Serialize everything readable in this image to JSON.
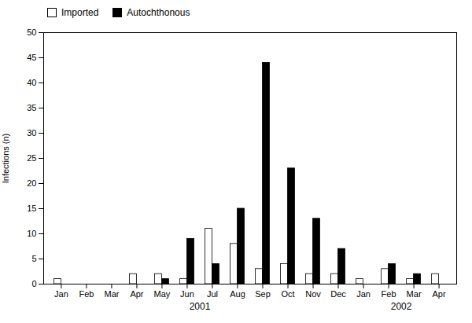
{
  "chart_data": {
    "type": "bar",
    "categories": [
      "Jan",
      "Feb",
      "Mar",
      "Apr",
      "May",
      "Jun",
      "Jul",
      "Aug",
      "Sep",
      "Oct",
      "Nov",
      "Dec",
      "Jan",
      "Feb",
      "Mar",
      "Apr"
    ],
    "series": [
      {
        "name": "Imported",
        "color": "#ffffff",
        "values": [
          1,
          0,
          0,
          2,
          2,
          1,
          11,
          8,
          3,
          4,
          2,
          2,
          1,
          3,
          1,
          2
        ]
      },
      {
        "name": "Autochthonous",
        "color": "#000000",
        "values": [
          0,
          0,
          0,
          0,
          1,
          9,
          4,
          15,
          44,
          23,
          13,
          7,
          0,
          4,
          2,
          0
        ]
      }
    ],
    "ylabel": "Infections (n)",
    "ylim": [
      0,
      50
    ],
    "yticks": [
      0,
      5,
      10,
      15,
      20,
      25,
      30,
      35,
      40,
      45,
      50
    ],
    "annotations": [
      {
        "text": "2001",
        "x": 5.5
      },
      {
        "text": "2002",
        "x": 13.5
      }
    ],
    "legend": "upper left",
    "grid": false
  }
}
